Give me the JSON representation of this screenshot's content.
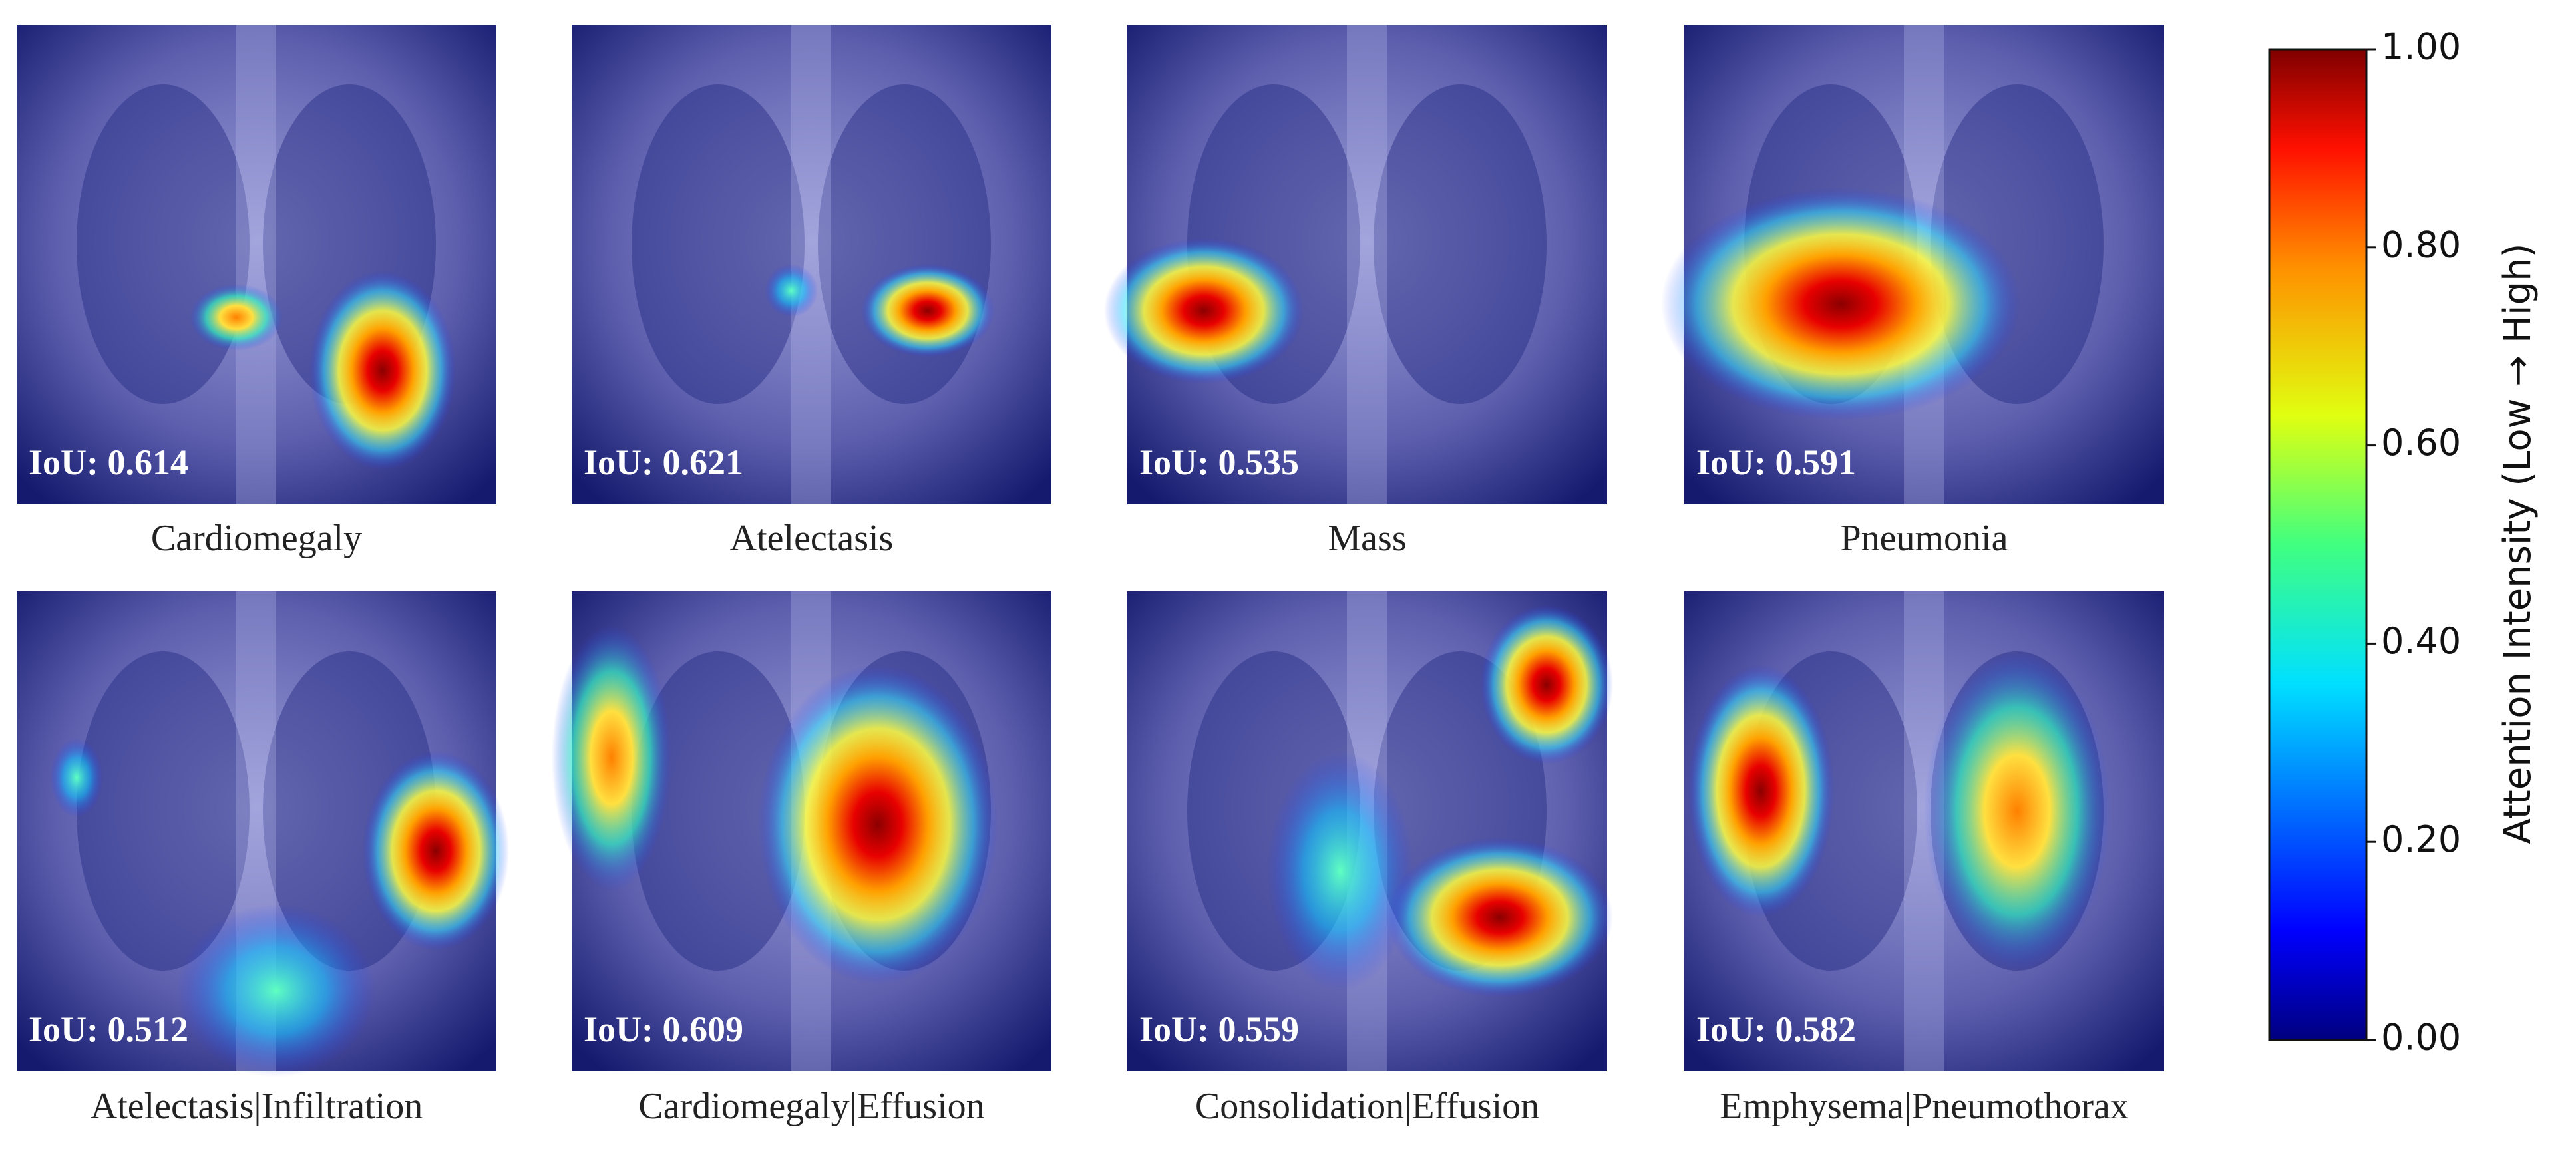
{
  "panels": [
    {
      "label": "Cardiomegaly",
      "iou": "IoU: 0.614"
    },
    {
      "label": "Atelectasis",
      "iou": "IoU: 0.621"
    },
    {
      "label": "Mass",
      "iou": "IoU: 0.535"
    },
    {
      "label": "Pneumonia",
      "iou": "IoU: 0.591"
    },
    {
      "label": "Atelectasis|Infiltration",
      "iou": "IoU: 0.512"
    },
    {
      "label": "Cardiomegaly|Effusion",
      "iou": "IoU: 0.609"
    },
    {
      "label": "Consolidation|Effusion",
      "iou": "IoU: 0.559"
    },
    {
      "label": "Emphysema|Pneumothorax",
      "iou": "IoU: 0.582"
    }
  ],
  "colorbar": {
    "label": "Attention Intensity (Low → High)",
    "lim": [
      0,
      1
    ],
    "ticks": [
      {
        "value": 0,
        "label": "0.00"
      },
      {
        "value": 0.2,
        "label": "0.20"
      },
      {
        "value": 0.4,
        "label": "0.40"
      },
      {
        "value": 0.6,
        "label": "0.60"
      },
      {
        "value": 0.8,
        "label": "0.80"
      },
      {
        "value": 1,
        "label": "1.00"
      }
    ]
  }
}
